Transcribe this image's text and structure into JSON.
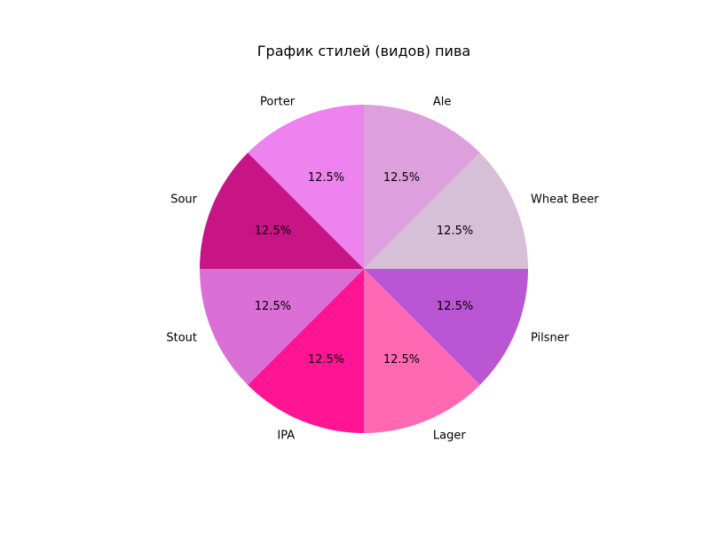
{
  "chart_data": {
    "type": "pie",
    "title": "График стилей (видов) пива",
    "start_angle_deg": 90,
    "direction": "counterclockwise",
    "categories": [
      "Porter",
      "Sour",
      "Stout",
      "IPA",
      "Lager",
      "Pilsner",
      "Wheat Beer",
      "Ale"
    ],
    "values": [
      12.5,
      12.5,
      12.5,
      12.5,
      12.5,
      12.5,
      12.5,
      12.5
    ],
    "percent_labels": [
      "12.5%",
      "12.5%",
      "12.5%",
      "12.5%",
      "12.5%",
      "12.5%",
      "12.5%",
      "12.5%"
    ],
    "colors": [
      "#ee82ee",
      "#c71585",
      "#da70d6",
      "#ff1493",
      "#ff69b4",
      "#ba55d3",
      "#d8bfd8",
      "#dda0dd"
    ],
    "legend": "none"
  }
}
